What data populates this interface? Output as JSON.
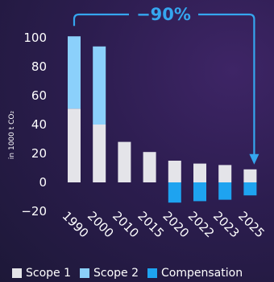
{
  "colors": {
    "scope1": "#e4e4e9",
    "scope2": "#8bd0fb",
    "compensation": "#1ea3f0",
    "annotation": "#35a6ef",
    "axis_text": "#ffffff"
  },
  "chart_data": {
    "type": "bar",
    "stacked": true,
    "categories": [
      "1990",
      "2000",
      "2010",
      "2015",
      "2020",
      "2022",
      "2023",
      "2025"
    ],
    "series": [
      {
        "name": "Scope 1",
        "values": [
          51,
          40,
          28,
          21,
          15,
          13,
          12,
          9
        ]
      },
      {
        "name": "Scope 2",
        "values": [
          50,
          54,
          0,
          0,
          0,
          0,
          0,
          0
        ]
      },
      {
        "name": "Compensation",
        "values": [
          0,
          0,
          0,
          0,
          -14,
          -13,
          -12,
          -9
        ]
      }
    ],
    "ylabel": "in 1000 t CO₂",
    "ylim": [
      -20,
      100
    ],
    "yticks": [
      "−20",
      "0",
      "20",
      "40",
      "60",
      "80",
      "100"
    ],
    "grid": false,
    "legend": "bottom",
    "annotation": {
      "text": "−90%",
      "from": "1990",
      "to": "2025"
    }
  }
}
